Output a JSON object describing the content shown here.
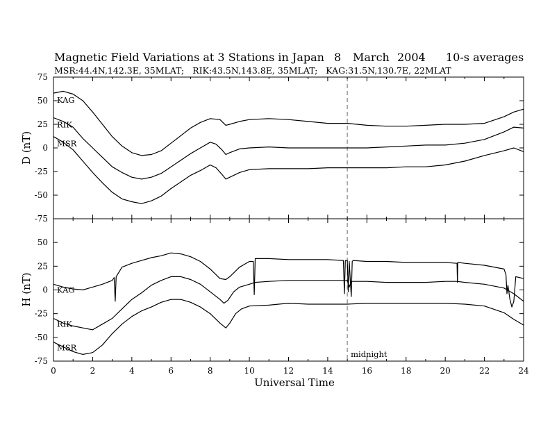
{
  "header": {
    "title": "Magnetic Field Variations at 3 Stations in Japan",
    "date_day": "8",
    "date_month": "March",
    "date_year": "2004",
    "averaging": "10-s averages",
    "stations_info": "MSR:44.4N,142.3E, 35MLAT;   RIK:43.5N,143.8E, 35MLAT;   KAG:31.5N,130.7E, 22MLAT"
  },
  "chart_data": [
    {
      "type": "line",
      "ylabel": "D (nT)",
      "ylim": [
        -75,
        75
      ],
      "yticks": [
        75,
        50,
        25,
        0,
        -25,
        -50,
        -75
      ],
      "xlim": [
        0,
        24
      ],
      "series": [
        {
          "name": "KAG",
          "x": [
            0,
            0.5,
            1,
            1.5,
            2,
            2.5,
            3,
            3.5,
            4,
            4.5,
            5,
            5.5,
            6,
            6.5,
            7,
            7.5,
            8,
            8.5,
            8.8,
            9,
            9.5,
            10,
            11,
            12,
            13,
            14,
            15,
            15.5,
            16,
            17,
            18,
            19,
            20,
            21,
            22,
            23,
            23.5,
            24
          ],
          "y": [
            58,
            60,
            57,
            50,
            38,
            25,
            12,
            2,
            -5,
            -8,
            -7,
            -3,
            5,
            13,
            21,
            27,
            31,
            30,
            24,
            25,
            28,
            30,
            31,
            30,
            28,
            26,
            26,
            25,
            24,
            23,
            23,
            24,
            25,
            25,
            26,
            33,
            38,
            41
          ]
        },
        {
          "name": "RIK",
          "x": [
            0,
            0.5,
            1,
            1.5,
            2,
            2.5,
            3,
            3.5,
            4,
            4.5,
            5,
            5.5,
            6,
            6.5,
            7,
            7.5,
            8,
            8.3,
            8.6,
            8.8,
            9,
            9.5,
            10,
            11,
            12,
            13,
            14,
            15,
            16,
            17,
            18,
            19,
            20,
            21,
            22,
            23,
            23.5,
            24
          ],
          "y": [
            32,
            28,
            22,
            10,
            0,
            -10,
            -20,
            -26,
            -31,
            -33,
            -31,
            -27,
            -20,
            -13,
            -6,
            0,
            6,
            4,
            -2,
            -7,
            -5,
            -1,
            0,
            1,
            0,
            0,
            0,
            0,
            0,
            1,
            2,
            3,
            3,
            5,
            9,
            17,
            22,
            21
          ]
        },
        {
          "name": "MSR",
          "x": [
            0,
            0.5,
            1,
            1.5,
            2,
            2.5,
            3,
            3.5,
            4,
            4.5,
            5,
            5.5,
            6,
            6.5,
            7,
            7.5,
            8,
            8.3,
            8.6,
            8.8,
            9,
            9.5,
            10,
            11,
            12,
            13,
            14,
            15,
            16,
            17,
            18,
            19,
            20,
            21,
            22,
            23,
            23.5,
            24
          ],
          "y": [
            12,
            6,
            -2,
            -14,
            -26,
            -37,
            -47,
            -54,
            -57,
            -59,
            -56,
            -51,
            -43,
            -36,
            -29,
            -24,
            -18,
            -21,
            -28,
            -33,
            -31,
            -26,
            -23,
            -22,
            -22,
            -22,
            -21,
            -21,
            -21,
            -21,
            -20,
            -20,
            -18,
            -14,
            -8,
            -3,
            0,
            -4
          ]
        }
      ]
    },
    {
      "type": "line",
      "xlabel": "Universal Time",
      "ylabel": "H (nT)",
      "ylim": [
        -75,
        75
      ],
      "yticks": [
        50,
        25,
        0,
        -25,
        -50,
        -75
      ],
      "xlim": [
        0,
        24
      ],
      "xticks": [
        0,
        2,
        4,
        6,
        8,
        10,
        12,
        14,
        16,
        18,
        20,
        22,
        24
      ],
      "series": [
        {
          "name": "KAG",
          "x": [
            0,
            0.5,
            1,
            1.5,
            2,
            2.5,
            3,
            3.1,
            3.15,
            3.2,
            3.5,
            4,
            4.5,
            5,
            5.5,
            6,
            6.5,
            7,
            7.5,
            8,
            8.5,
            8.8,
            9,
            9.5,
            10,
            10.2,
            10.25,
            10.3,
            11,
            12,
            13,
            14,
            14.8,
            14.85,
            14.9,
            15,
            15.05,
            15.1,
            15.2,
            15.25,
            15.3,
            16,
            17,
            18,
            19,
            20,
            20.6,
            20.62,
            20.64,
            21,
            22,
            23,
            23.1,
            23.15,
            23.2,
            23.3,
            23.4,
            23.5,
            23.6,
            24
          ],
          "y": [
            6,
            3,
            1,
            0,
            3,
            6,
            10,
            13,
            -12,
            14,
            24,
            28,
            31,
            34,
            36,
            39,
            38,
            35,
            30,
            22,
            12,
            11,
            14,
            24,
            30,
            30,
            -5,
            33,
            33,
            32,
            32,
            32,
            31,
            -4,
            31,
            31,
            -2,
            30,
            -7,
            30,
            31,
            30,
            30,
            29,
            29,
            29,
            28,
            8,
            29,
            28,
            26,
            22,
            16,
            -4,
            5,
            -10,
            -18,
            -12,
            14,
            12
          ]
        },
        {
          "name": "RIK",
          "x": [
            0,
            0.5,
            1,
            1.5,
            2,
            2.5,
            3,
            3.5,
            4,
            4.5,
            5,
            5.5,
            6,
            6.5,
            7,
            7.5,
            8,
            8.5,
            8.7,
            8.9,
            9.2,
            9.5,
            10,
            10.3,
            11,
            12,
            13,
            14,
            15,
            15.1,
            15.2,
            16,
            17,
            18,
            19,
            20,
            20.6,
            21,
            22,
            23,
            23.5,
            24
          ],
          "y": [
            -30,
            -35,
            -38,
            -40,
            -42,
            -36,
            -30,
            -20,
            -10,
            -3,
            5,
            10,
            14,
            14,
            11,
            6,
            -2,
            -10,
            -14,
            -11,
            -2,
            3,
            6,
            8,
            9,
            10,
            10,
            10,
            10,
            3,
            9,
            9,
            8,
            8,
            8,
            9,
            9,
            8,
            6,
            2,
            -4,
            -12
          ]
        },
        {
          "name": "MSR",
          "x": [
            0,
            0.5,
            1,
            1.5,
            2,
            2.5,
            3,
            3.5,
            4,
            4.5,
            5,
            5.5,
            6,
            6.5,
            7,
            7.5,
            8,
            8.5,
            8.8,
            9,
            9.3,
            9.6,
            10,
            11,
            12,
            13,
            14,
            15,
            16,
            17,
            18,
            19,
            20,
            21,
            22,
            23,
            23.5,
            24
          ],
          "y": [
            -55,
            -60,
            -65,
            -68,
            -66,
            -58,
            -46,
            -36,
            -28,
            -22,
            -18,
            -13,
            -10,
            -10,
            -13,
            -18,
            -25,
            -35,
            -40,
            -35,
            -25,
            -20,
            -17,
            -16,
            -14,
            -15,
            -15,
            -15,
            -14,
            -14,
            -14,
            -14,
            -14,
            -15,
            -17,
            -24,
            -31,
            -37
          ]
        }
      ]
    }
  ],
  "annotations": {
    "midnight_label": "midnight",
    "midnight_ut": 15
  }
}
